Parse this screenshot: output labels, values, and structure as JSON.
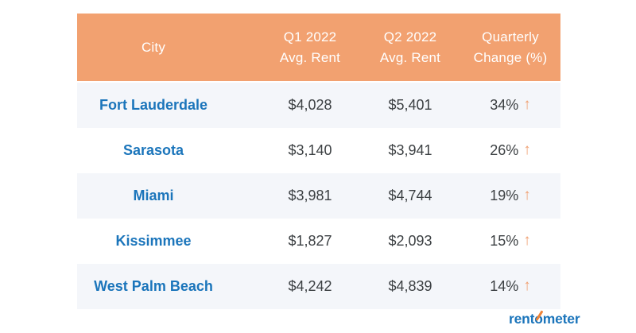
{
  "colors": {
    "header_bg": "#F2A170",
    "header_text": "#FFFFFF",
    "city_text": "#1B75BB",
    "value_text": "#3C4043",
    "arrow_orange": "#F0A071",
    "row_stripe_bg": "#F4F6FA",
    "row_white_bg": "#FFFFFF",
    "logo_blue": "#1B75BB",
    "logo_needle_orange": "#F08438"
  },
  "table": {
    "columns": [
      {
        "label": "City"
      },
      {
        "label_line1": "Q1 2022",
        "label_line2": "Avg. Rent"
      },
      {
        "label_line1": "Q2 2022",
        "label_line2": "Avg. Rent"
      },
      {
        "label_line1": "Quarterly",
        "label_line2": "Change (%)"
      }
    ],
    "arrow_icon": "↑",
    "rows": [
      {
        "city": "Fort Lauderdale",
        "q1": "$4,028",
        "q2": "$5,401",
        "change": "34%",
        "direction": "up"
      },
      {
        "city": "Sarasota",
        "q1": "$3,140",
        "q2": "$3,941",
        "change": "26%",
        "direction": "up"
      },
      {
        "city": "Miami",
        "q1": "$3,981",
        "q2": "$4,744",
        "change": "19%",
        "direction": "up"
      },
      {
        "city": "Kissimmee",
        "q1": "$1,827",
        "q2": "$2,093",
        "change": "15%",
        "direction": "up"
      },
      {
        "city": "West Palm Beach",
        "q1": "$4,242",
        "q2": "$4,839",
        "change": "14%",
        "direction": "up"
      }
    ]
  },
  "logo": {
    "part1": "rent",
    "needle_letter": "o",
    "part2": "meter"
  },
  "chart_data": {
    "type": "table",
    "title": "",
    "columns": [
      "City",
      "Q1 2022 Avg. Rent",
      "Q2 2022 Avg. Rent",
      "Quarterly Change (%)"
    ],
    "rows": [
      [
        "Fort Lauderdale",
        "$4,028",
        "$5,401",
        "34% ↑"
      ],
      [
        "Sarasota",
        "$3,140",
        "$3,941",
        "26% ↑"
      ],
      [
        "Miami",
        "$3,981",
        "$4,744",
        "19% ↑"
      ],
      [
        "Kissimmee",
        "$1,827",
        "$2,093",
        "15% ↑"
      ],
      [
        "West Palm Beach",
        "$4,242",
        "$4,839",
        "14% ↑"
      ]
    ],
    "cities": [
      "Fort Lauderdale",
      "Sarasota",
      "Miami",
      "Kissimmee",
      "West Palm Beach"
    ],
    "q1_avg_rent": [
      4028,
      3140,
      3981,
      1827,
      4242
    ],
    "q2_avg_rent": [
      5401,
      3941,
      4744,
      2093,
      4839
    ],
    "quarterly_change_pct": [
      34,
      26,
      19,
      15,
      14
    ],
    "source_brand": "rentometer"
  }
}
